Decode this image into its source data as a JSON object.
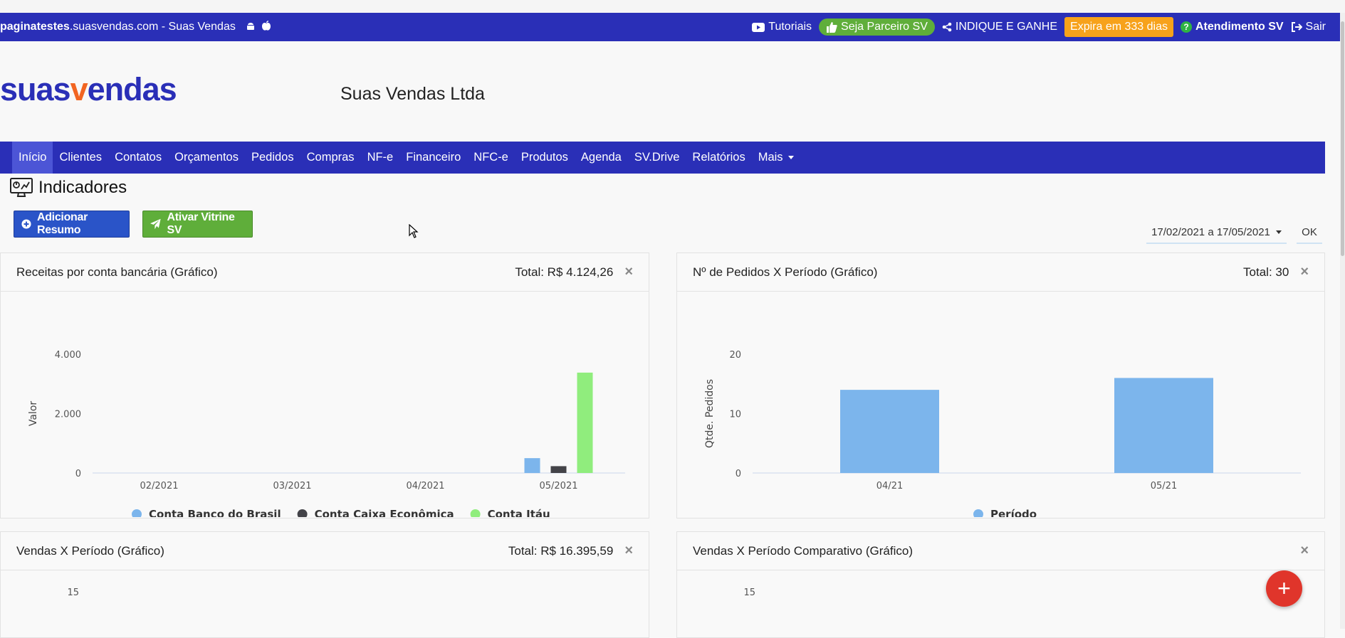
{
  "topbar": {
    "site_bold": "paginatestes",
    "site_rest": ".suasvendas.com - Suas Vendas",
    "tutoriais": "Tutoriais",
    "parceiro": "Seja Parceiro SV",
    "indique": "INDIQUE E GANHE",
    "expira": "Expira em 333 dias",
    "atendimento": "Atendimento SV",
    "sair": "Sair"
  },
  "brand": {
    "logo_a": "suas",
    "logo_v": "v",
    "logo_b": "endas",
    "company": "Suas Vendas Ltda"
  },
  "nav": {
    "items": [
      "Início",
      "Clientes",
      "Contatos",
      "Orçamentos",
      "Pedidos",
      "Compras",
      "NF-e",
      "Financeiro",
      "NFC-e",
      "Produtos",
      "Agenda",
      "SV.Drive",
      "Relatórios",
      "Mais"
    ]
  },
  "page": {
    "title": "Indicadores",
    "add_summary": "Adicionar Resumo",
    "vitrine": "Ativar Vitrine SV",
    "date_range": "17/02/2021 a 17/05/2021",
    "ok": "OK"
  },
  "panels": {
    "receitas": {
      "title": "Receitas por conta bancária (Gráfico)",
      "total": "Total: R$ 4.124,26"
    },
    "pedidos": {
      "title": "Nº de Pedidos X Período (Gráfico)",
      "total": "Total: 30"
    },
    "vendas": {
      "title": "Vendas X Período (Gráfico)",
      "total": "Total: R$ 16.395,59"
    },
    "comparativo": {
      "title": "Vendas X Período Comparativo (Gráfico)"
    }
  },
  "colors": {
    "primary": "#2a2fb7",
    "green": "#5fae3a",
    "orange": "#f7a21b",
    "fab": "#e0352b"
  },
  "chart_data": [
    {
      "type": "bar",
      "title": "Receitas por conta bancária (Gráfico)",
      "categories": [
        "02/2021",
        "03/2021",
        "04/2021",
        "05/2021"
      ],
      "series": [
        {
          "name": "Conta Banco do Brasil",
          "color": "#7cb5ec",
          "values": [
            0,
            0,
            0,
            500
          ]
        },
        {
          "name": "Conta Caixa Econômica",
          "color": "#434348",
          "values": [
            0,
            0,
            0,
            230
          ]
        },
        {
          "name": "Conta Itáu",
          "color": "#90ed7d",
          "values": [
            0,
            0,
            0,
            3380
          ]
        }
      ],
      "yticks": [
        0,
        2000,
        4000
      ],
      "ytick_labels": [
        "0",
        "2.000",
        "4.000"
      ],
      "ylabel": "Valor",
      "ylim": [
        0,
        4000
      ],
      "legend": "bottom"
    },
    {
      "type": "bar",
      "title": "Nº de Pedidos X Período (Gráfico)",
      "categories": [
        "04/21",
        "05/21"
      ],
      "series": [
        {
          "name": "Período",
          "color": "#7cb5ec",
          "values": [
            14,
            16
          ]
        }
      ],
      "yticks": [
        0,
        10,
        20
      ],
      "ytick_labels": [
        "0",
        "10",
        "20"
      ],
      "ylabel": "Qtde. Pedidos",
      "ylim": [
        0,
        20
      ],
      "legend": "bottom"
    },
    {
      "type": "bar",
      "title": "Vendas X Período (Gráfico)",
      "ytick_labels": [
        "15"
      ]
    },
    {
      "type": "bar",
      "title": "Vendas X Período Comparativo (Gráfico)",
      "ytick_labels": [
        "15"
      ]
    }
  ]
}
